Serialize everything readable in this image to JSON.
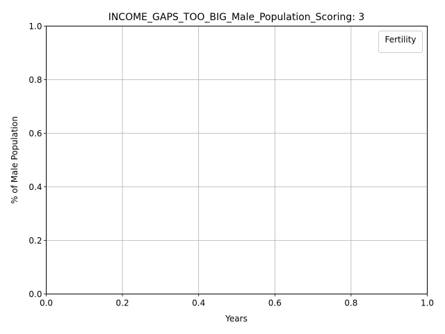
{
  "chart_data": {
    "type": "line",
    "title": "INCOME_GAPS_TOO_BIG_Male_Population_Scoring: 3",
    "xlabel": "Years",
    "ylabel": "% of Male Population",
    "xlim": [
      0.0,
      1.0
    ],
    "ylim": [
      0.0,
      1.0
    ],
    "xticks": [
      "0.0",
      "0.2",
      "0.4",
      "0.6",
      "0.8",
      "1.0"
    ],
    "yticks": [
      "0.0",
      "0.2",
      "0.4",
      "0.6",
      "0.8",
      "1.0"
    ],
    "grid": true,
    "legend": {
      "title": "Fertility",
      "placement": "top-right",
      "entries": []
    },
    "series": []
  }
}
